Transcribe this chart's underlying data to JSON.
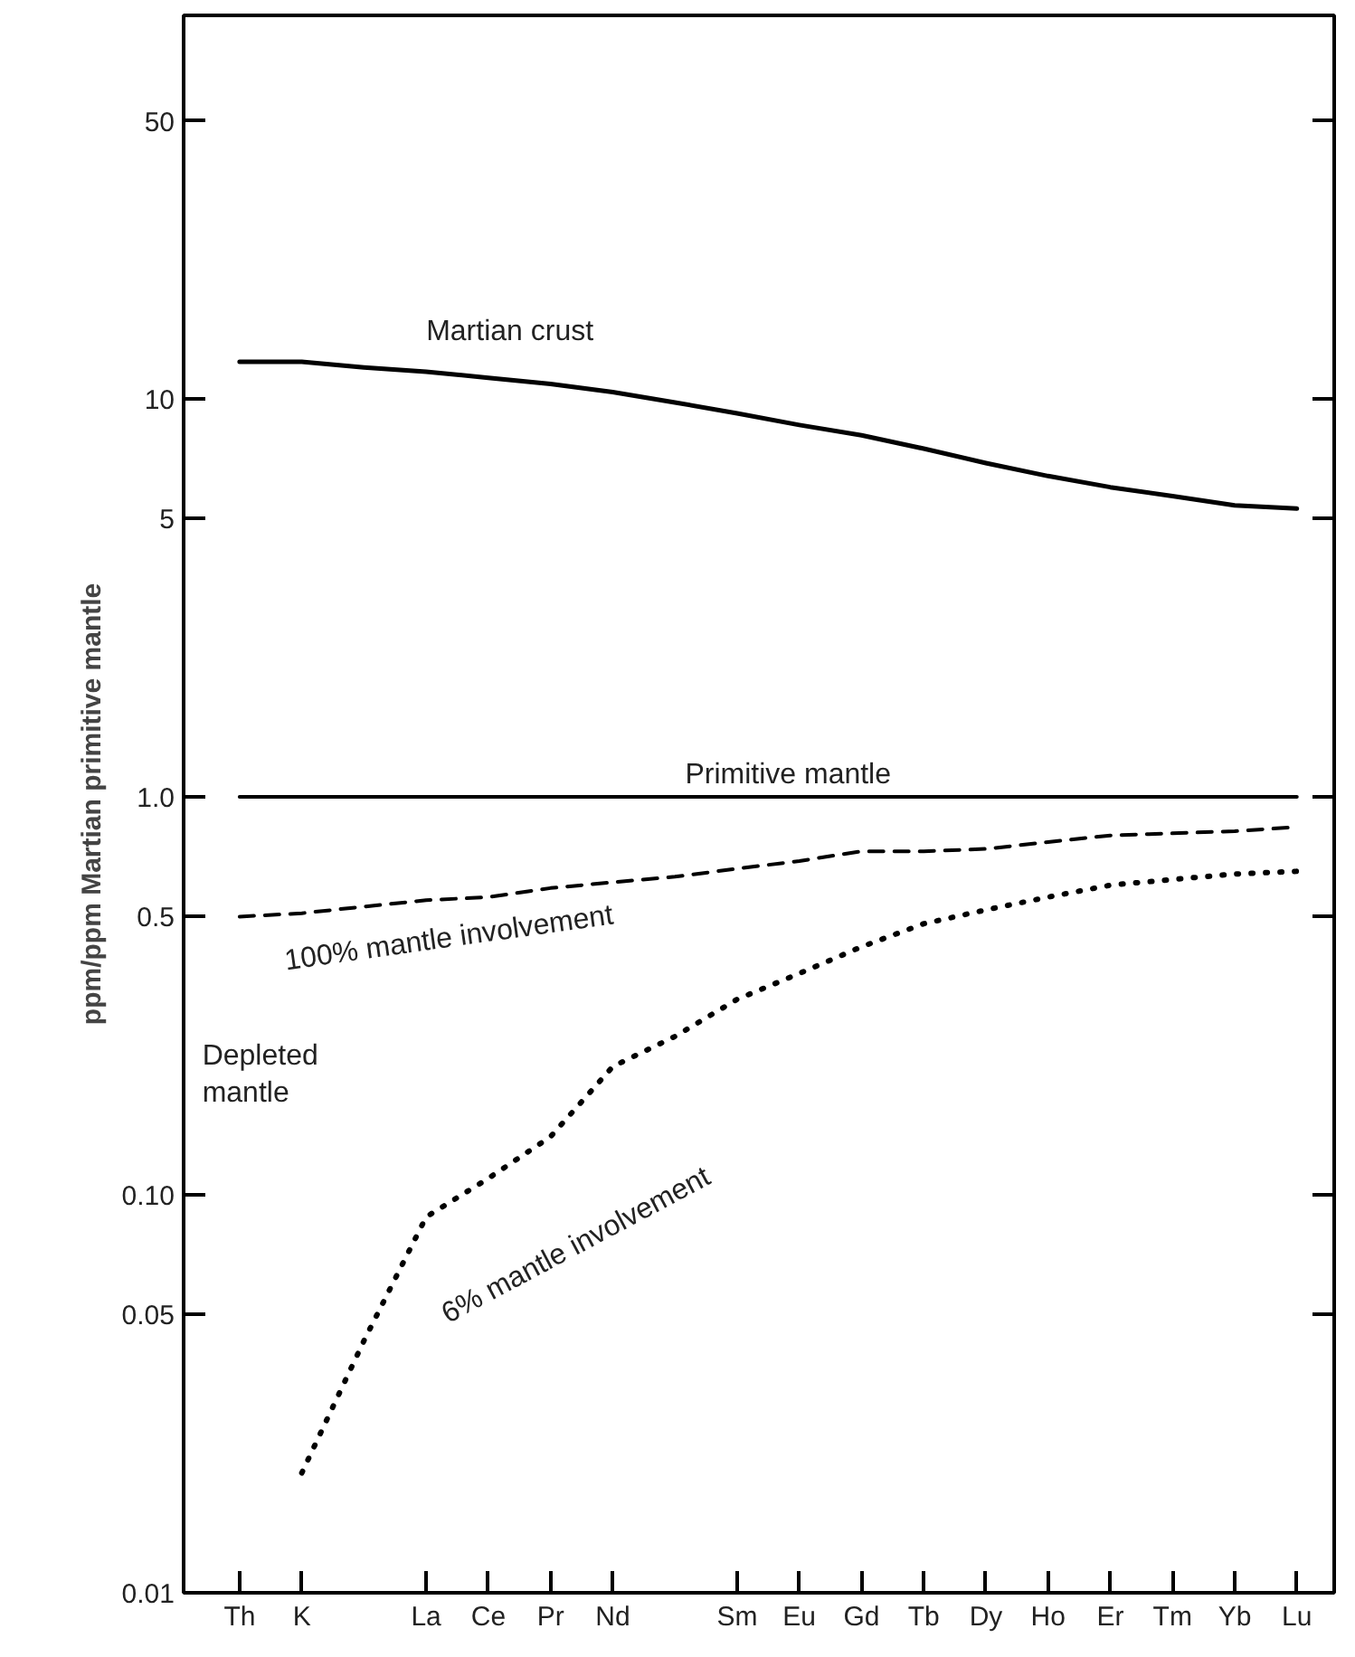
{
  "chart_data": {
    "type": "line",
    "ylabel": "ppm/ppm Martian primitive mantle",
    "categories": [
      "Th",
      "K",
      null,
      "La",
      "Ce",
      "Pr",
      "Nd",
      null,
      "Sm",
      "Eu",
      "Gd",
      "Tb",
      "Dy",
      "Ho",
      "Er",
      "Tm",
      "Yb",
      "Lu"
    ],
    "series": [
      {
        "name": "Martian crust",
        "color": "#000000",
        "line_style": "solid",
        "values": [
          12.4,
          12.4,
          12.0,
          11.7,
          11.3,
          10.9,
          10.4,
          9.8,
          9.2,
          8.6,
          8.1,
          7.5,
          6.9,
          6.4,
          6.0,
          5.7,
          5.4,
          5.3
        ]
      },
      {
        "name": "Primitive mantle",
        "color": "#000000",
        "line_style": "solid",
        "values": [
          1,
          1,
          1,
          1,
          1,
          1,
          1,
          1,
          1,
          1,
          1,
          1,
          1,
          1,
          1,
          1,
          1,
          1
        ]
      },
      {
        "name": "100% mantle involvement",
        "color": "#000000",
        "line_style": "dashed",
        "values": [
          0.5,
          0.51,
          0.53,
          0.55,
          0.56,
          0.59,
          0.61,
          0.63,
          0.66,
          0.69,
          0.73,
          0.73,
          0.74,
          0.77,
          0.8,
          0.81,
          0.82,
          0.84
        ]
      },
      {
        "name": "6% mantle involvement",
        "color": "#000000",
        "line_style": "dotted",
        "values": [
          null,
          0.02,
          0.043,
          0.088,
          0.11,
          0.14,
          0.21,
          0.25,
          0.31,
          0.36,
          0.42,
          0.48,
          0.52,
          0.56,
          0.6,
          0.62,
          0.64,
          0.65
        ]
      }
    ],
    "annotations": [
      "Depleted\nmantle"
    ],
    "log": "y",
    "ylim": [
      0.01,
      92
    ],
    "yticks": [
      0.01,
      0.05,
      {
        "value": 0.1,
        "label": "0.10"
      },
      0.5,
      {
        "value": 1,
        "label": "1.0"
      },
      5,
      10,
      50
    ],
    "grid": false
  }
}
